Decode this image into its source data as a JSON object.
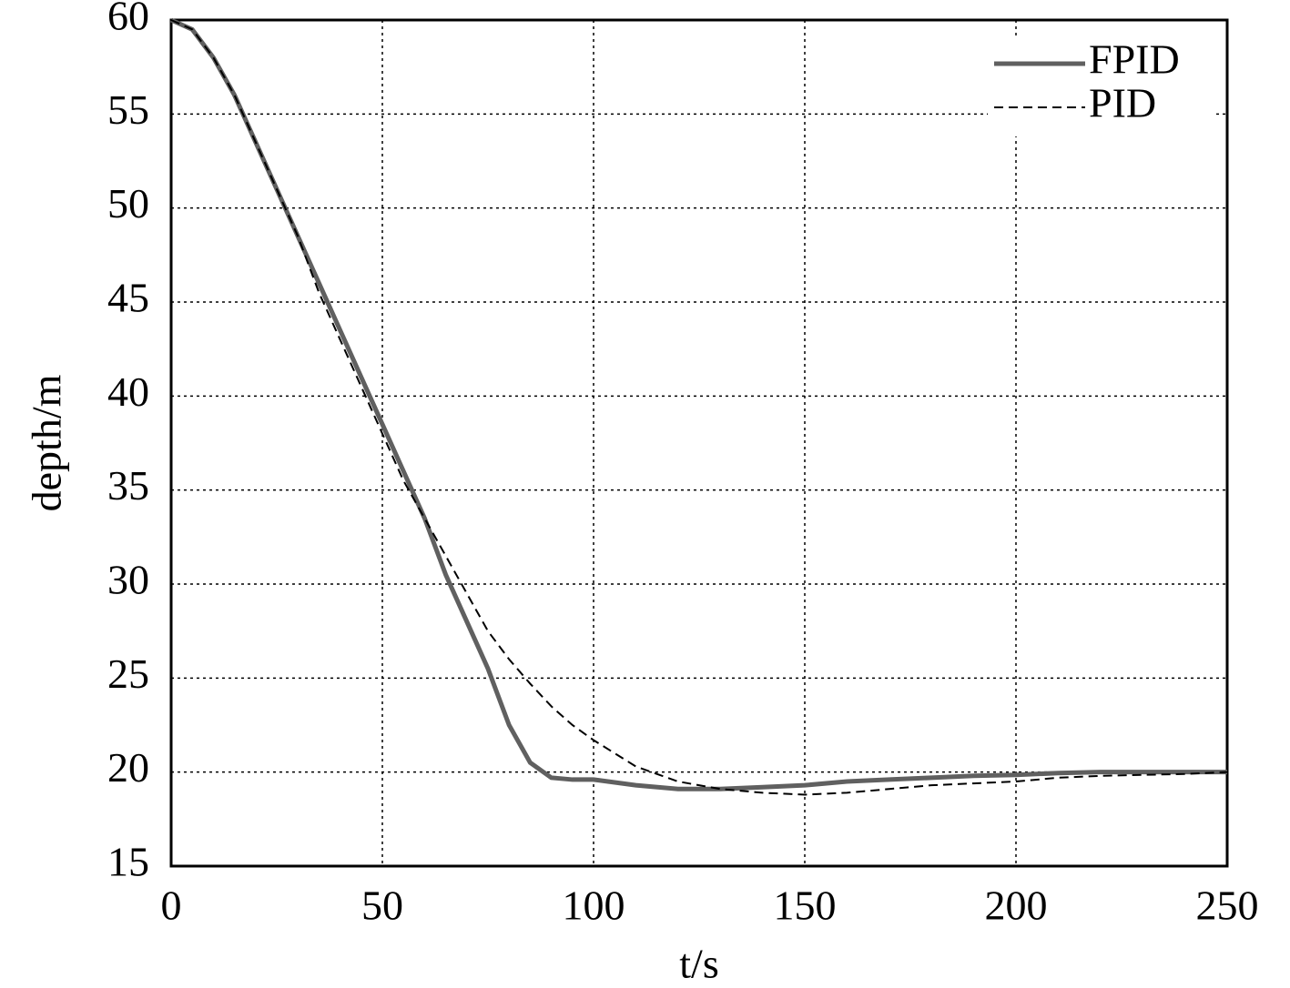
{
  "chart_data": {
    "type": "line",
    "xlabel": "t/s",
    "ylabel": "depth/m",
    "x": [
      0,
      5,
      10,
      15,
      20,
      25,
      30,
      35,
      40,
      45,
      50,
      55,
      60,
      65,
      70,
      75,
      80,
      85,
      90,
      95,
      100,
      110,
      120,
      130,
      140,
      150,
      160,
      170,
      180,
      190,
      200,
      210,
      220,
      230,
      240,
      250
    ],
    "series": [
      {
        "name": "FPID",
        "color": "#606060",
        "line_style": "solid",
        "values": [
          60,
          59.5,
          58,
          56,
          53.5,
          51,
          48.5,
          46,
          43.5,
          41,
          38.5,
          36,
          33.5,
          30.5,
          28,
          25.5,
          22.5,
          20.5,
          19.7,
          19.6,
          19.6,
          19.3,
          19.1,
          19.1,
          19.2,
          19.3,
          19.5,
          19.6,
          19.7,
          19.8,
          19.85,
          19.95,
          20,
          20,
          20,
          20
        ]
      },
      {
        "name": "PID",
        "color": "#000000",
        "line_style": "dashed",
        "values": [
          60,
          59.5,
          58,
          56,
          53.5,
          51,
          48.5,
          45.5,
          43,
          40.5,
          38,
          35.5,
          33.5,
          31.5,
          29.5,
          27.5,
          26,
          24.7,
          23.5,
          22.5,
          21.7,
          20.3,
          19.5,
          19.1,
          18.9,
          18.8,
          18.9,
          19.1,
          19.3,
          19.4,
          19.5,
          19.7,
          19.8,
          19.85,
          19.9,
          20
        ]
      }
    ],
    "xlim": [
      0,
      250
    ],
    "xticks": [
      0,
      50,
      100,
      150,
      200,
      250
    ],
    "ylim": [
      15,
      60
    ],
    "yticks": [
      15,
      20,
      25,
      30,
      35,
      40,
      45,
      50,
      55,
      60
    ],
    "grid": true,
    "legend": "upper right"
  }
}
